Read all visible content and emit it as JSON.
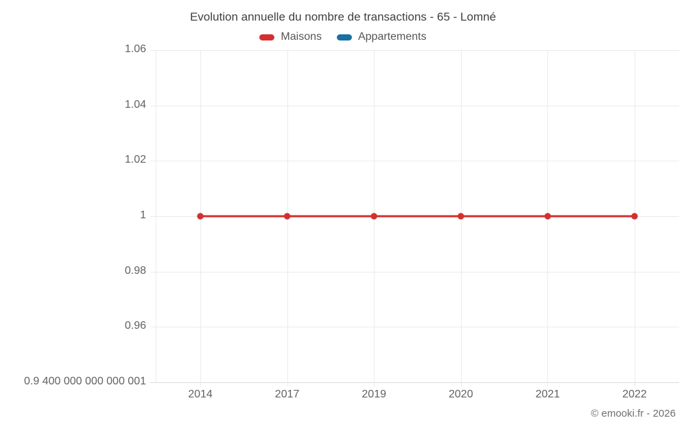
{
  "title": "Evolution annuelle du nombre de transactions - 65 - Lomné",
  "legend": {
    "items": [
      {
        "label": "Maisons",
        "color": "#d32f2f"
      },
      {
        "label": "Appartements",
        "color": "#1a6fa3"
      }
    ]
  },
  "footer": {
    "credit": "© emooki.fr - 2026"
  },
  "chart_data": {
    "type": "line",
    "title": "Evolution annuelle du nombre de transactions - 65 - Lomné",
    "xlabel": "",
    "ylabel": "",
    "categories": [
      "2014",
      "2017",
      "2019",
      "2020",
      "2021",
      "2022"
    ],
    "series": [
      {
        "name": "Maisons",
        "color": "#d32f2f",
        "values": [
          1,
          1,
          1,
          1,
          1,
          1
        ]
      },
      {
        "name": "Appartements",
        "color": "#1a6fa3",
        "values": []
      }
    ],
    "ylim": [
      0.94,
      1.06
    ],
    "y_ticks": [
      {
        "value": 1.06,
        "label": "1.06"
      },
      {
        "value": 1.04,
        "label": "1.04"
      },
      {
        "value": 1.02,
        "label": "1.02"
      },
      {
        "value": 1.0,
        "label": "1"
      },
      {
        "value": 0.98,
        "label": "0.98"
      },
      {
        "value": 0.96,
        "label": "0.96"
      },
      {
        "value": 0.94,
        "label": "0.9 400 000 000 000 001"
      }
    ],
    "grid": true,
    "legend_position": "top"
  }
}
